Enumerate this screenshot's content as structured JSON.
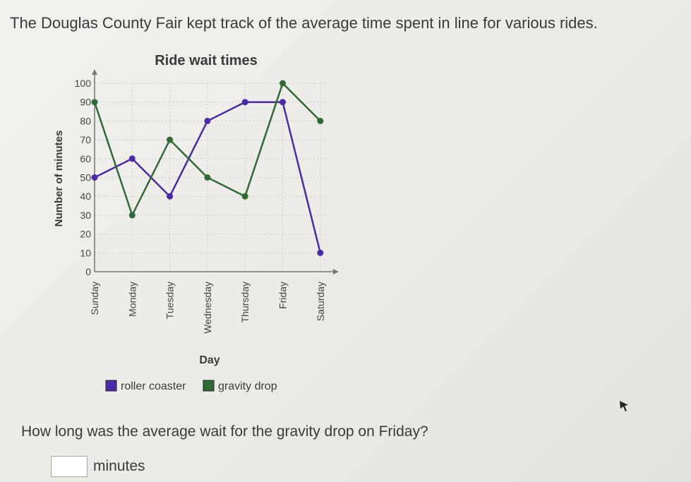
{
  "intro": "The Douglas County Fair kept track of the average time spent in line for various rides.",
  "question": "How long was the average wait for the gravity drop on Friday?",
  "answer": {
    "value": "",
    "unit": "minutes"
  },
  "chart_data": {
    "type": "line",
    "title": "Ride wait times",
    "xlabel": "Day",
    "ylabel": "Number of minutes",
    "categories": [
      "Sunday",
      "Monday",
      "Tuesday",
      "Wednesday",
      "Thursday",
      "Friday",
      "Saturday"
    ],
    "ylim": [
      0,
      100
    ],
    "yticks": [
      0,
      10,
      20,
      30,
      40,
      50,
      60,
      70,
      80,
      90,
      100
    ],
    "grid": true,
    "legend_position": "bottom",
    "series": [
      {
        "name": "roller coaster",
        "color": "#4a2aa6",
        "values": [
          50,
          60,
          40,
          80,
          90,
          90,
          10
        ]
      },
      {
        "name": "gravity drop",
        "color": "#2f6b35",
        "values": [
          90,
          30,
          70,
          50,
          40,
          100,
          80
        ]
      }
    ]
  }
}
